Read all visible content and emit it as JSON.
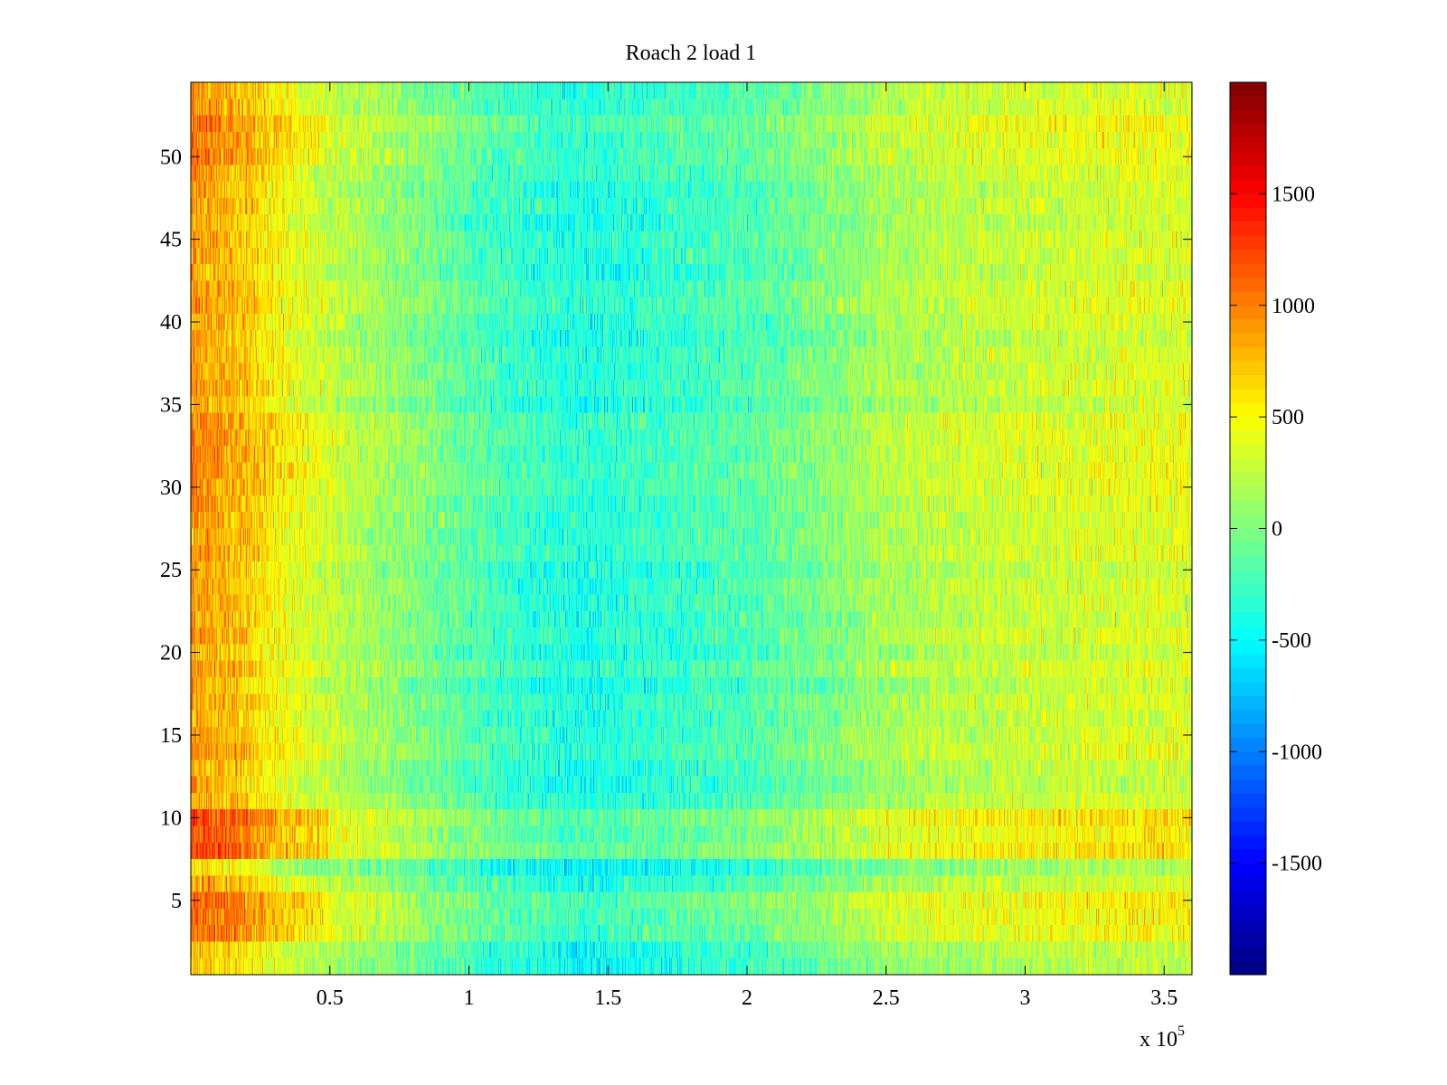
{
  "chart_data": {
    "type": "heatmap",
    "title": "Roach 2 load 1",
    "xlabel": "",
    "ylabel": "",
    "x_exponent_label": "x 10",
    "x_exponent_power": "5",
    "xlim": [
      0,
      3.6
    ],
    "ylim": [
      0.5,
      54.5
    ],
    "x_ticks": [
      0.5,
      1,
      1.5,
      2,
      2.5,
      3,
      3.5
    ],
    "x_tick_labels": [
      "0.5",
      "1",
      "1.5",
      "2",
      "2.5",
      "3",
      "3.5"
    ],
    "y_ticks": [
      5,
      10,
      15,
      20,
      25,
      30,
      35,
      40,
      45,
      50
    ],
    "y_tick_labels": [
      "5",
      "10",
      "15",
      "20",
      "25",
      "30",
      "35",
      "40",
      "45",
      "50"
    ],
    "rows": 54,
    "colormap": "jet",
    "clim": [
      -2000,
      2000
    ],
    "colorbar_ticks": [
      1500,
      1000,
      500,
      0,
      -500,
      -1000,
      -1500
    ],
    "colorbar_tick_labels": [
      "1500",
      "1000",
      "500",
      "0",
      "-500",
      "-1000",
      "-1500"
    ],
    "column_profile": {
      "x": [
        0.0,
        0.1,
        0.2,
        0.3,
        0.5,
        0.8,
        1.1,
        1.4,
        1.7,
        2.0,
        2.3,
        2.5,
        2.8,
        3.1,
        3.4,
        3.6
      ],
      "mean": [
        900,
        800,
        700,
        500,
        250,
        0,
        -250,
        -400,
        -300,
        -200,
        0,
        150,
        250,
        300,
        350,
        350
      ]
    },
    "row_bands": [
      {
        "rows": [
          1,
          2
        ],
        "offset": -150
      },
      {
        "rows": [
          3,
          5
        ],
        "offset": 250
      },
      {
        "rows": [
          7,
          7
        ],
        "offset": -300
      },
      {
        "rows": [
          8,
          10
        ],
        "offset": 350
      },
      {
        "rows": [
          29,
          34
        ],
        "offset": 120
      },
      {
        "rows": [
          50,
          52
        ],
        "offset": 200
      }
    ],
    "noise_amplitude": 300
  }
}
